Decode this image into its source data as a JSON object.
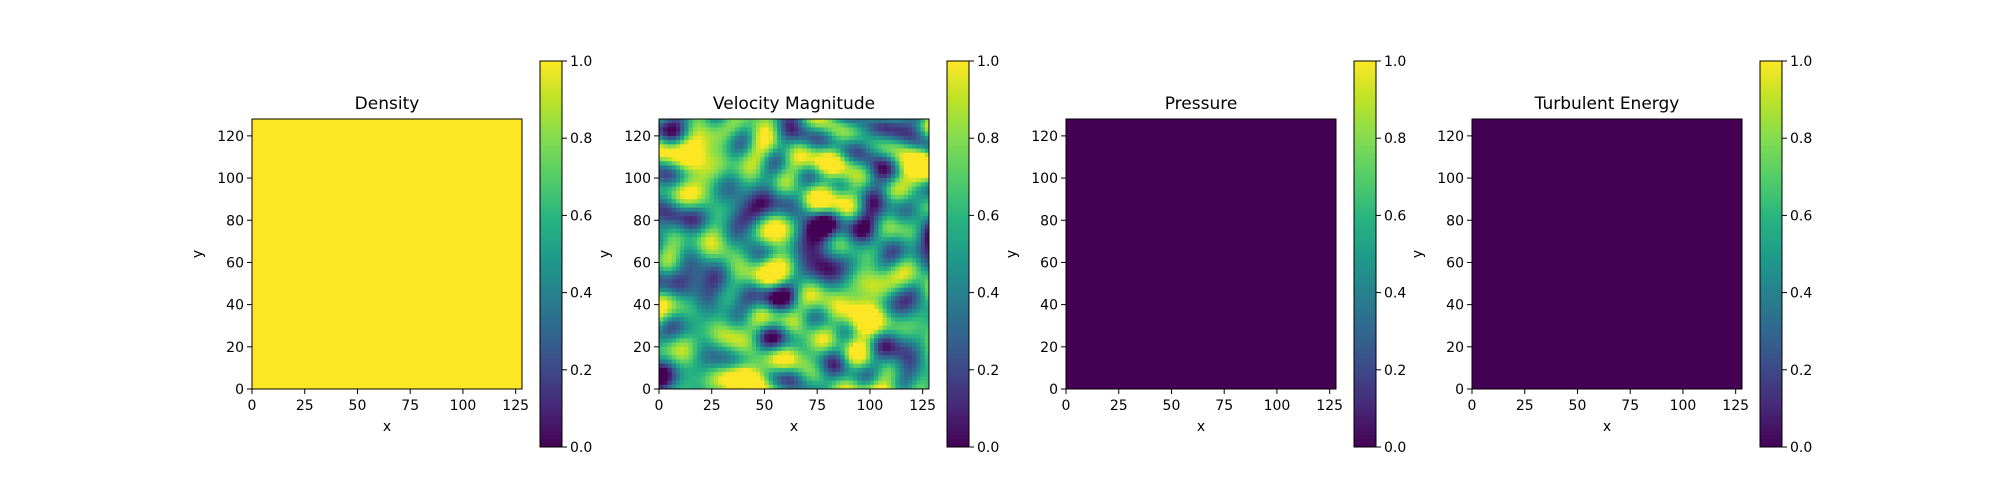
{
  "figure": {
    "background": "#ffffff"
  },
  "chart_data": [
    {
      "type": "heatmap",
      "title": "Density",
      "xlabel": "x",
      "ylabel": "y",
      "xlim": [
        0,
        128
      ],
      "ylim": [
        0,
        128
      ],
      "xticks": [
        0,
        25,
        50,
        75,
        100,
        125
      ],
      "yticks": [
        0,
        20,
        40,
        60,
        80,
        100,
        120
      ],
      "colormap": "viridis",
      "colorbar": {
        "range": [
          0.0,
          1.0
        ],
        "ticks": [
          "0.0",
          "0.2",
          "0.4",
          "0.6",
          "0.8",
          "1.0"
        ]
      },
      "field": {
        "kind": "uniform",
        "value": 1.0
      }
    },
    {
      "type": "heatmap",
      "title": "Velocity Magnitude",
      "xlabel": "x",
      "ylabel": "y",
      "xlim": [
        0,
        128
      ],
      "ylim": [
        0,
        128
      ],
      "xticks": [
        0,
        25,
        50,
        75,
        100,
        125
      ],
      "yticks": [
        0,
        20,
        40,
        60,
        80,
        100,
        120
      ],
      "colormap": "viridis",
      "colorbar": {
        "range": [
          0.0,
          1.0
        ],
        "ticks": [
          "0.0",
          "0.2",
          "0.4",
          "0.6",
          "0.8",
          "1.0"
        ]
      },
      "field": {
        "kind": "turbulent",
        "mean": 0.5,
        "hotspots": [
          {
            "x": 18,
            "y": 104,
            "value": 1.0
          },
          {
            "x": 88,
            "y": 96,
            "value": 1.0
          },
          {
            "x": 52,
            "y": 70,
            "value": 1.0
          },
          {
            "x": 95,
            "y": 34,
            "value": 0.95
          },
          {
            "x": 120,
            "y": 108,
            "value": 0.9
          },
          {
            "x": 30,
            "y": 38,
            "value": 0.85
          }
        ]
      }
    },
    {
      "type": "heatmap",
      "title": "Pressure",
      "xlabel": "x",
      "ylabel": "y",
      "xlim": [
        0,
        128
      ],
      "ylim": [
        0,
        128
      ],
      "xticks": [
        0,
        25,
        50,
        75,
        100,
        125
      ],
      "yticks": [
        0,
        20,
        40,
        60,
        80,
        100,
        120
      ],
      "colormap": "viridis",
      "colorbar": {
        "range": [
          0.0,
          1.0
        ],
        "ticks": [
          "0.0",
          "0.2",
          "0.4",
          "0.6",
          "0.8",
          "1.0"
        ]
      },
      "field": {
        "kind": "uniform",
        "value": 0.0
      }
    },
    {
      "type": "heatmap",
      "title": "Turbulent Energy",
      "xlabel": "x",
      "ylabel": "y",
      "xlim": [
        0,
        128
      ],
      "ylim": [
        0,
        128
      ],
      "xticks": [
        0,
        25,
        50,
        75,
        100,
        125
      ],
      "yticks": [
        0,
        20,
        40,
        60,
        80,
        100,
        120
      ],
      "colormap": "viridis",
      "colorbar": {
        "range": [
          0.0,
          1.0
        ],
        "ticks": [
          "0.0",
          "0.2",
          "0.4",
          "0.6",
          "0.8",
          "1.0"
        ]
      },
      "field": {
        "kind": "uniform",
        "value": 0.0
      }
    }
  ]
}
